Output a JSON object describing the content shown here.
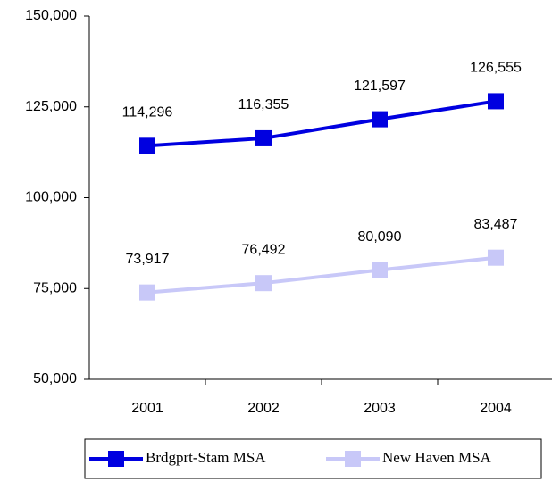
{
  "chart_data": {
    "type": "line",
    "categories": [
      "2001",
      "2002",
      "2003",
      "2004"
    ],
    "series": [
      {
        "name": "Brdgprt-Stam MSA",
        "color": "#0000e0",
        "values": [
          114296,
          116355,
          121597,
          126555
        ],
        "value_labels": [
          "114,296",
          "116,355",
          "121,597",
          "126,555"
        ]
      },
      {
        "name": "New Haven MSA",
        "color": "#c8c8f8",
        "values": [
          73917,
          76492,
          80090,
          83487
        ],
        "value_labels": [
          "73,917",
          "76,492",
          "80,090",
          "83,487"
        ]
      }
    ],
    "ylim": [
      50000,
      150000
    ],
    "yticks": [
      {
        "value": 50000,
        "label": "50,000"
      },
      {
        "value": 75000,
        "label": "75,000"
      },
      {
        "value": 100000,
        "label": "100,000"
      },
      {
        "value": 125000,
        "label": "125,000"
      },
      {
        "value": 150000,
        "label": "150,000"
      }
    ],
    "grid": false,
    "legend": "bottom"
  }
}
